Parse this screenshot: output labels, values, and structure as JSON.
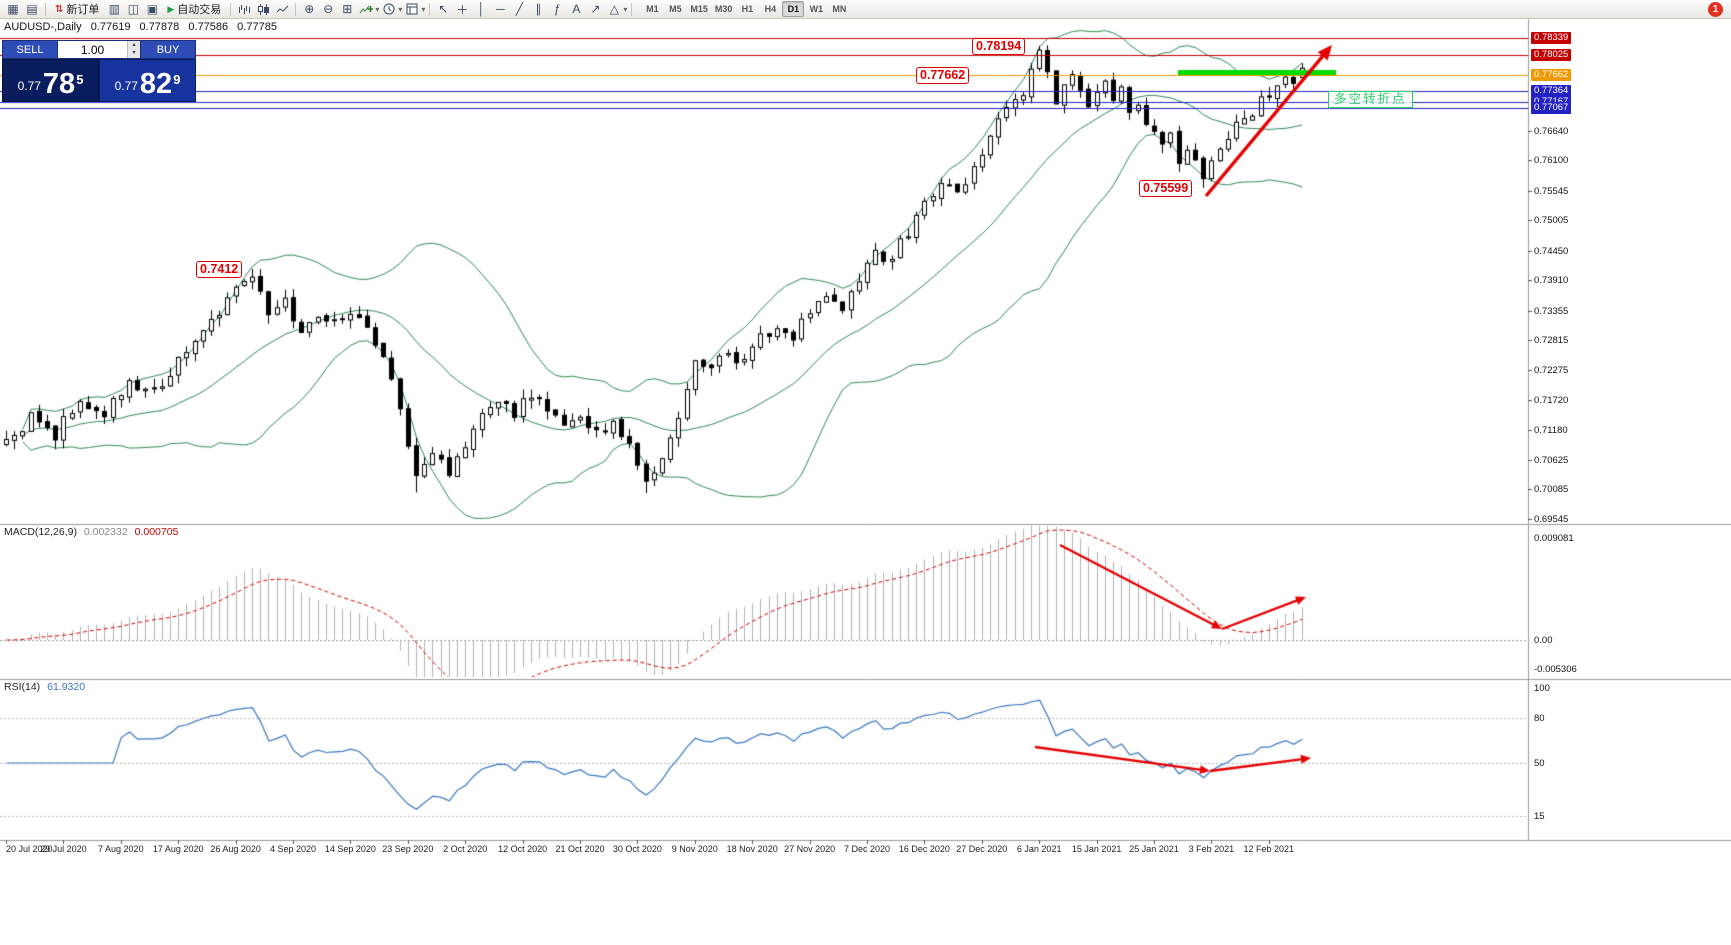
{
  "app": {
    "notification_badge": "1"
  },
  "toolbar": {
    "new_order_label": "新订单",
    "autotrading_label": "自动交易",
    "timeframes": [
      "M1",
      "M5",
      "M15",
      "M30",
      "H1",
      "H4",
      "D1",
      "W1",
      "MN"
    ],
    "active_timeframe": "D1"
  },
  "icons": {
    "new_chart": "▦",
    "profiles": "▤",
    "market_watch": "▥",
    "data_window": "◫",
    "navigator": "▣",
    "new_order": "⇅",
    "autotrading_play": "▶",
    "zoom_in": "⊕",
    "zoom_out": "⊖",
    "tile_windows": "⊞",
    "cursor": "↖",
    "crosshair": "＋",
    "vertical_line": "│",
    "horizontal_line": "─",
    "trendline": "╱",
    "channel": "∥",
    "fibonacci": "ƒ",
    "text_tool": "A",
    "arrow_tool": "↗",
    "shapes": "△",
    "caret": "▾"
  },
  "header": {
    "symbol": "AUDUSD-,Daily",
    "open": "0.77619",
    "high": "0.77878",
    "low": "0.77586",
    "close": "0.77785"
  },
  "trade_panel": {
    "sell_label": "SELL",
    "buy_label": "BUY",
    "volume": "1.00",
    "sell_price_prefix": "0.77",
    "sell_price_big": "78",
    "sell_price_sup": "5",
    "buy_price_prefix": "0.77",
    "buy_price_big": "82",
    "buy_price_sup": "9"
  },
  "annotations": {
    "jan_high_label": "0.78194",
    "level_label": "0.77662",
    "feb_low_label": "0.75599",
    "aug_high_label": "0.7412",
    "turning_point_note": "多空转折点"
  },
  "panes": {
    "macd": {
      "name": "MACD(12,26,9)",
      "main_value": "0.002332",
      "signal_value": "0.000705",
      "axis_top": "0.009081",
      "axis_zero": "0.00",
      "axis_bottom": "-0.005306"
    },
    "rsi": {
      "name": "RSI(14)",
      "value": "61.9320",
      "axis": [
        "100",
        "80",
        "50",
        "15"
      ],
      "levels": [
        80,
        50,
        15
      ]
    }
  },
  "chart_data": {
    "type": "candlestick",
    "symbol": "AUDUSD",
    "period": "Daily",
    "current_candle": {
      "open": 0.77619,
      "high": 0.77878,
      "low": 0.77586,
      "close": 0.77785
    },
    "ylim": [
      0.6925,
      0.786
    ],
    "y_ticks": [
      "0.76640",
      "0.76100",
      "0.75545",
      "0.75005",
      "0.74450",
      "0.73910",
      "0.73355",
      "0.72815",
      "0.72275",
      "0.71720",
      "0.71180",
      "0.70625",
      "0.70085",
      "0.69545"
    ],
    "x_dates": [
      "20 Jul 2020",
      "29 Jul 2020",
      "7 Aug 2020",
      "17 Aug 2020",
      "26 Aug 2020",
      "4 Sep 2020",
      "14 Sep 2020",
      "23 Sep 2020",
      "2 Oct 2020",
      "12 Oct 2020",
      "21 Oct 2020",
      "30 Oct 2020",
      "9 Nov 2020",
      "18 Nov 2020",
      "27 Nov 2020",
      "7 Dec 2020",
      "16 Dec 2020",
      "27 Dec 2020",
      "6 Jan 2021",
      "15 Jan 2021",
      "25 Jan 2021",
      "3 Feb 2021",
      "12 Feb 2021"
    ],
    "candle_count": 159,
    "price_anchors": [
      [
        0,
        0.709
      ],
      [
        3,
        0.714
      ],
      [
        6,
        0.711
      ],
      [
        9,
        0.717
      ],
      [
        12,
        0.7145
      ],
      [
        15,
        0.721
      ],
      [
        18,
        0.7185
      ],
      [
        21,
        0.724
      ],
      [
        24,
        0.729
      ],
      [
        27,
        0.736
      ],
      [
        30,
        0.74
      ],
      [
        32,
        0.732
      ],
      [
        34,
        0.735
      ],
      [
        36,
        0.7305
      ],
      [
        38,
        0.7335
      ],
      [
        40,
        0.731
      ],
      [
        42,
        0.734
      ],
      [
        44,
        0.73
      ],
      [
        46,
        0.725
      ],
      [
        48,
        0.7155
      ],
      [
        50,
        0.704
      ],
      [
        52,
        0.7065
      ],
      [
        54,
        0.7045
      ],
      [
        56,
        0.7095
      ],
      [
        58,
        0.714
      ],
      [
        60,
        0.7165
      ],
      [
        62,
        0.7145
      ],
      [
        64,
        0.718
      ],
      [
        66,
        0.7155
      ],
      [
        68,
        0.713
      ],
      [
        70,
        0.715
      ],
      [
        72,
        0.711
      ],
      [
        74,
        0.713
      ],
      [
        76,
        0.7085
      ],
      [
        78,
        0.702
      ],
      [
        80,
        0.706
      ],
      [
        82,
        0.715
      ],
      [
        84,
        0.7255
      ],
      [
        86,
        0.723
      ],
      [
        88,
        0.726
      ],
      [
        90,
        0.7235
      ],
      [
        92,
        0.729
      ],
      [
        94,
        0.731
      ],
      [
        96,
        0.729
      ],
      [
        98,
        0.733
      ],
      [
        100,
        0.736
      ],
      [
        102,
        0.734
      ],
      [
        104,
        0.7395
      ],
      [
        106,
        0.744
      ],
      [
        108,
        0.743
      ],
      [
        110,
        0.748
      ],
      [
        112,
        0.754
      ],
      [
        114,
        0.757
      ],
      [
        116,
        0.755
      ],
      [
        118,
        0.76
      ],
      [
        120,
        0.766
      ],
      [
        122,
        0.77
      ],
      [
        124,
        0.774
      ],
      [
        126,
        0.78
      ],
      [
        127,
        0.777
      ],
      [
        128,
        0.772
      ],
      [
        129,
        0.7755
      ],
      [
        130,
        0.7775
      ],
      [
        131,
        0.773
      ],
      [
        132,
        0.77
      ],
      [
        133,
        0.7745
      ],
      [
        134,
        0.776
      ],
      [
        135,
        0.772
      ],
      [
        136,
        0.774
      ],
      [
        137,
        0.77
      ],
      [
        138,
        0.772
      ],
      [
        139,
        0.768
      ],
      [
        140,
        0.766
      ],
      [
        141,
        0.763
      ],
      [
        142,
        0.765
      ],
      [
        143,
        0.761
      ],
      [
        144,
        0.764
      ],
      [
        145,
        0.76
      ],
      [
        146,
        0.7575
      ],
      [
        147,
        0.761
      ],
      [
        148,
        0.764
      ],
      [
        150,
        0.767
      ],
      [
        152,
        0.77
      ],
      [
        154,
        0.773
      ],
      [
        156,
        0.7755
      ],
      [
        157,
        0.7745
      ],
      [
        158,
        0.7778
      ]
    ],
    "key_extremes": [
      {
        "index": 30,
        "type": "high",
        "price": 0.7412
      },
      {
        "index": 50,
        "type": "low",
        "price": 0.7003
      },
      {
        "index": 78,
        "type": "low",
        "price": 0.7002
      },
      {
        "index": 126,
        "type": "high",
        "price": 0.78194
      },
      {
        "index": 146,
        "type": "low",
        "price": 0.75599
      }
    ],
    "levels": [
      {
        "label": "0.78339",
        "price": 0.78339,
        "color": "#c40000"
      },
      {
        "label": "0.78025",
        "price": 0.78025,
        "color": "#c40000"
      },
      {
        "label": "0.77662",
        "price": 0.77662,
        "color": "#f09a00"
      },
      {
        "label": "0.77364",
        "price": 0.77364,
        "color": "#2222c4"
      },
      {
        "label": "0.77167",
        "price": 0.77167,
        "color": "#2222c4"
      },
      {
        "label": "0.77067",
        "price": 0.77067,
        "color": "#2222c4"
      }
    ],
    "indicators": [
      {
        "type": "bollinger",
        "period": 20,
        "deviation": 2,
        "color": "#2e8b57"
      },
      {
        "type": "macd",
        "fast": 12,
        "slow": 26,
        "signal": 9,
        "histogram_color": "#b2b2b2",
        "signal_color": "#e00000"
      },
      {
        "type": "rsi",
        "period": 14,
        "color": "#3a78c3"
      }
    ],
    "annotation_colors": {
      "trend_arrows": "#e60000",
      "support_zone": "#00dc00"
    }
  }
}
